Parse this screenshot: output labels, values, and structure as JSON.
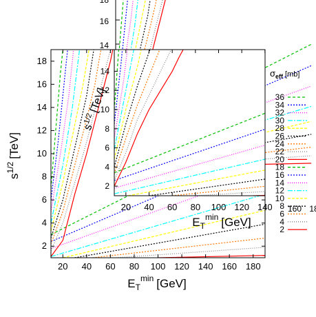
{
  "colors": {
    "axes": "#000000",
    "series_palette": [
      "#ff0000",
      "#808080",
      "#000000",
      "#ff7700",
      "#ffff00",
      "#00ffff",
      "#ff00ff",
      "#0000ff",
      "#00c000"
    ]
  },
  "chart_data": [
    {
      "type": "line",
      "id": "outer",
      "xlabel_base": "E",
      "xlabel_sub": "T",
      "xlabel_sup": "min",
      "xlabel_unit": "[GeV]",
      "ylabel_base": "s",
      "ylabel_sup": "1/2",
      "ylabel_unit": "[TeV]",
      "xlim": [
        10,
        190
      ],
      "ylim": [
        1,
        19
      ],
      "xticks": [
        "20",
        "40",
        "60",
        "80",
        "100",
        "120",
        "140",
        "160",
        "180"
      ],
      "yticks": [
        "2",
        "4",
        "6",
        "8",
        "10",
        "12",
        "14",
        "16",
        "18"
      ],
      "series": [
        {
          "sigma": 2,
          "points": [
            [
              100,
              1
            ],
            [
              190,
              1.2
            ]
          ]
        },
        {
          "sigma": 4,
          "points": [
            [
              65,
              1
            ],
            [
              190,
              1.9
            ]
          ]
        },
        {
          "sigma": 6,
          "points": [
            [
              45,
              1
            ],
            [
              190,
              2.7
            ]
          ]
        },
        {
          "sigma": 8,
          "points": [
            [
              30,
              1
            ],
            [
              190,
              3.9
            ]
          ]
        },
        {
          "sigma": 10,
          "points": [
            [
              20,
              1
            ],
            [
              190,
              5.1
            ]
          ]
        },
        {
          "sigma": 12,
          "points": [
            [
              10,
              1.1
            ],
            [
              190,
              6.5
            ]
          ]
        },
        {
          "sigma": 14,
          "points": [
            [
              10,
              1.8
            ],
            [
              190,
              8.4
            ]
          ]
        },
        {
          "sigma": 16,
          "points": [
            [
              10,
              2.4
            ],
            [
              190,
              10.3
            ]
          ]
        },
        {
          "sigma": 18,
          "points": [
            [
              10,
              3
            ],
            [
              190,
              12.3
            ]
          ]
        },
        {
          "sigma": 20,
          "points": [
            [
              10,
              1.1
            ],
            [
              20,
              2.5
            ],
            [
              25,
              4.5
            ],
            [
              30,
              6.5
            ],
            [
              40,
              10
            ],
            [
              50,
              14
            ],
            [
              55,
              16
            ],
            [
              60,
              18
            ],
            [
              62,
              19
            ]
          ]
        },
        {
          "sigma": 22,
          "points": [
            [
              10,
              1.6
            ],
            [
              20,
              4
            ],
            [
              30,
              7.5
            ],
            [
              40,
              11
            ],
            [
              50,
              15
            ],
            [
              55,
              17
            ],
            [
              60,
              19
            ]
          ]
        },
        {
          "sigma": 24,
          "points": [
            [
              10,
              2.2
            ],
            [
              20,
              5
            ],
            [
              30,
              9
            ],
            [
              40,
              13
            ],
            [
              47,
              16
            ],
            [
              52,
              19
            ]
          ]
        },
        {
          "sigma": 26,
          "points": [
            [
              10,
              2.7
            ],
            [
              20,
              6
            ],
            [
              30,
              10.5
            ],
            [
              40,
              15
            ],
            [
              46,
              19
            ]
          ]
        },
        {
          "sigma": 28,
          "points": [
            [
              10,
              3.3
            ],
            [
              20,
              7.5
            ],
            [
              30,
              12.5
            ],
            [
              37,
              16
            ],
            [
              42,
              19
            ]
          ]
        },
        {
          "sigma": 30,
          "points": [
            [
              10,
              4
            ],
            [
              20,
              9
            ],
            [
              28,
              14
            ],
            [
              34,
              19
            ]
          ]
        },
        {
          "sigma": 32,
          "points": [
            [
              10,
              5
            ],
            [
              18,
              10
            ],
            [
              25,
              15
            ],
            [
              29,
              19
            ]
          ]
        },
        {
          "sigma": 34,
          "points": [
            [
              10,
              6
            ],
            [
              16,
              11
            ],
            [
              22,
              17
            ],
            [
              24,
              19
            ]
          ]
        },
        {
          "sigma": 36,
          "points": [
            [
              10,
              7
            ],
            [
              14,
              12
            ],
            [
              18,
              17
            ],
            [
              20,
              19
            ]
          ]
        }
      ]
    },
    {
      "type": "line",
      "id": "inner",
      "xlabel_base": "E",
      "xlabel_sub": "T",
      "xlabel_sup": "min",
      "xlabel_unit": "[GeV]",
      "ylabel_base": "s",
      "ylabel_sup": "1/2",
      "ylabel_unit": "[TeV]",
      "xlim": [
        10,
        190
      ],
      "ylim": [
        1,
        19
      ],
      "xticks": [
        "20",
        "40",
        "60",
        "80",
        "100",
        "120",
        "140",
        "160",
        "180"
      ],
      "yticks": [
        "2",
        "4",
        "6",
        "8",
        "10",
        "12",
        "14",
        "16",
        "18"
      ],
      "series": [
        {
          "sigma": 2,
          "points": [
            [
              130,
              1
            ],
            [
              190,
              1.2
            ]
          ]
        },
        {
          "sigma": 4,
          "points": [
            [
              80,
              1
            ],
            [
              190,
              1.8
            ]
          ]
        },
        {
          "sigma": 6,
          "points": [
            [
              60,
              1
            ],
            [
              190,
              2.6
            ]
          ]
        },
        {
          "sigma": 8,
          "points": [
            [
              40,
              1
            ],
            [
              190,
              3.6
            ]
          ]
        },
        {
          "sigma": 10,
          "points": [
            [
              22,
              1
            ],
            [
              190,
              4.8
            ]
          ]
        },
        {
          "sigma": 12,
          "points": [
            [
              10,
              1.2
            ],
            [
              190,
              6.2
            ]
          ]
        },
        {
          "sigma": 14,
          "points": [
            [
              10,
              1.8
            ],
            [
              190,
              8
            ]
          ]
        },
        {
          "sigma": 16,
          "points": [
            [
              10,
              2.6
            ],
            [
              190,
              10
            ]
          ]
        },
        {
          "sigma": 18,
          "points": [
            [
              10,
              3.4
            ],
            [
              190,
              12
            ]
          ]
        },
        {
          "sigma": 20,
          "points": [
            [
              10,
              2
            ],
            [
              20,
              4.5
            ],
            [
              30,
              7.5
            ],
            [
              40,
              10
            ],
            [
              50,
              12
            ],
            [
              60,
              14
            ],
            [
              66,
              15.5
            ],
            [
              75,
              17.5
            ],
            [
              80,
              19
            ]
          ]
        },
        {
          "sigma": 22,
          "points": [
            [
              10,
              2.6
            ],
            [
              20,
              5.5
            ],
            [
              30,
              9
            ],
            [
              40,
              11.5
            ],
            [
              50,
              14
            ],
            [
              60,
              16.5
            ],
            [
              70,
              19
            ]
          ]
        },
        {
          "sigma": 24,
          "points": [
            [
              10,
              3.3
            ],
            [
              20,
              7
            ],
            [
              30,
              10.5
            ],
            [
              40,
              13.5
            ],
            [
              50,
              16.5
            ],
            [
              58,
              19
            ]
          ]
        },
        {
          "sigma": 26,
          "points": [
            [
              10,
              4
            ],
            [
              20,
              8.5
            ],
            [
              30,
              12.5
            ],
            [
              40,
              16
            ],
            [
              48,
              19
            ]
          ]
        },
        {
          "sigma": 28,
          "points": [
            [
              10,
              4.8
            ],
            [
              20,
              10
            ],
            [
              30,
              14.5
            ],
            [
              38,
              19
            ]
          ]
        },
        {
          "sigma": 30,
          "points": [
            [
              10,
              5.8
            ],
            [
              20,
              12
            ],
            [
              28,
              17
            ],
            [
              31,
              19
            ]
          ]
        },
        {
          "sigma": 32,
          "points": [
            [
              10,
              7
            ],
            [
              18,
              13
            ],
            [
              24,
              19
            ]
          ]
        },
        {
          "sigma": 34,
          "points": [
            [
              10,
              8.5
            ],
            [
              16,
              15
            ],
            [
              19,
              19
            ]
          ]
        },
        {
          "sigma": 36,
          "points": [
            [
              10,
              10
            ],
            [
              14,
              16.5
            ],
            [
              15,
              19
            ]
          ]
        }
      ]
    },
    {
      "type": "line",
      "id": "background",
      "yticks": [
        "14",
        "16",
        "18"
      ],
      "xticks": [
        "40",
        "60",
        "160",
        "18"
      ],
      "series": []
    }
  ],
  "legend": {
    "title_base": "σ",
    "title_sub": "eff",
    "title_unit": "[mb]",
    "entries": [
      {
        "label": "36",
        "color": "#00c000",
        "dash": "4,3"
      },
      {
        "label": "34",
        "color": "#0000ff",
        "dash": "2,2"
      },
      {
        "label": "32",
        "color": "#ff00ff",
        "dash": "1,2"
      },
      {
        "label": "30",
        "color": "#00ffff",
        "dash": "7,2,2,2"
      },
      {
        "label": "28",
        "color": "#ffff00",
        "dash": "4,2"
      },
      {
        "label": "26",
        "color": "#000000",
        "dash": "2,2"
      },
      {
        "label": "24",
        "color": "#ff7700",
        "dash": "2,2"
      },
      {
        "label": "22",
        "color": "#808080",
        "dash": "1,2"
      },
      {
        "label": "20",
        "color": "#ff0000",
        "dash": ""
      },
      {
        "label": "18",
        "color": "#00c000",
        "dash": "4,3"
      },
      {
        "label": "16",
        "color": "#0000ff",
        "dash": "2,2"
      },
      {
        "label": "14",
        "color": "#ff00ff",
        "dash": "1,2"
      },
      {
        "label": "12",
        "color": "#00ffff",
        "dash": "7,2,2,2"
      },
      {
        "label": "10",
        "color": "#ffff00",
        "dash": "4,2"
      },
      {
        "label": "8",
        "color": "#000000",
        "dash": "2,2"
      },
      {
        "label": "6",
        "color": "#ff7700",
        "dash": "2,2"
      },
      {
        "label": "4",
        "color": "#808080",
        "dash": "1,2"
      },
      {
        "label": "2",
        "color": "#ff0000",
        "dash": ""
      }
    ]
  }
}
